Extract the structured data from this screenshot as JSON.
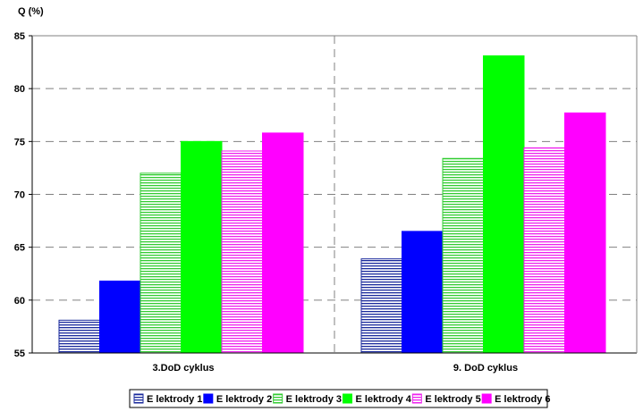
{
  "chart_data": {
    "type": "bar",
    "title": "",
    "xlabel": "",
    "ylabel": "Q (%)",
    "ylim": [
      55,
      85
    ],
    "yticks": [
      55,
      60,
      65,
      70,
      75,
      80,
      85
    ],
    "grid": "dashed",
    "legend_position": "bottom",
    "categories": [
      "3.DoD cyklus",
      "9. DoD cyklus"
    ],
    "series": [
      {
        "name": "E lektrody 1",
        "color": "#1a2a9c",
        "pattern": "hatched",
        "values": [
          58.1,
          63.9
        ]
      },
      {
        "name": "E lektrody 2",
        "color": "#0000ff",
        "pattern": "solid",
        "values": [
          61.8,
          66.5
        ]
      },
      {
        "name": "E lektrody 3",
        "color": "#33cc33",
        "pattern": "hatched",
        "values": [
          72.0,
          73.4
        ]
      },
      {
        "name": "E lektrody 4",
        "color": "#00ff00",
        "pattern": "solid",
        "values": [
          75.0,
          83.1
        ]
      },
      {
        "name": "E lektrody 5",
        "color": "#ee22ee",
        "pattern": "hatched",
        "values": [
          74.1,
          74.4
        ]
      },
      {
        "name": "E lektrody 6",
        "color": "#ff00ff",
        "pattern": "solid",
        "values": [
          75.8,
          77.7
        ]
      }
    ]
  }
}
